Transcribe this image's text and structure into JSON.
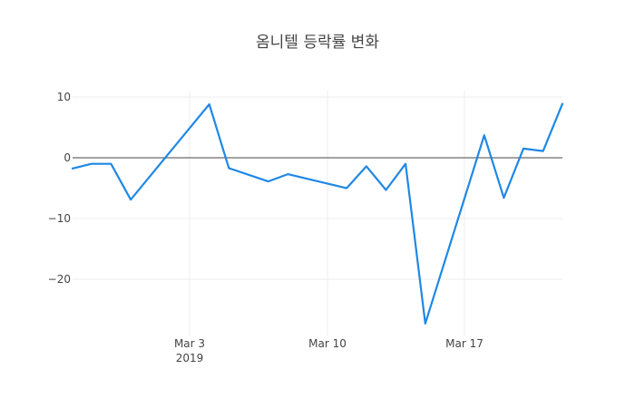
{
  "title": "옴니텔 등락률 변화",
  "colors": {
    "line": "#1f88e5",
    "zero_line": "#444444",
    "grid": "#eeeeee",
    "text": "#444444"
  },
  "y_axis": {
    "ticks": [
      {
        "value": 10,
        "label": "10"
      },
      {
        "value": 0,
        "label": "0"
      },
      {
        "value": -10,
        "label": "−10"
      },
      {
        "value": -20,
        "label": "−20"
      }
    ]
  },
  "x_axis": {
    "ticks": [
      {
        "label": "Mar 3",
        "sublabel": "2019"
      },
      {
        "label": "Mar 10",
        "sublabel": ""
      },
      {
        "label": "Mar 17",
        "sublabel": ""
      }
    ]
  },
  "chart_data": {
    "type": "line",
    "title": "옴니텔 등락률 변화",
    "xlabel": "",
    "ylabel": "",
    "x": [
      "2019-02-25",
      "2019-02-26",
      "2019-02-27",
      "2019-02-28",
      "2019-03-04",
      "2019-03-05",
      "2019-03-07",
      "2019-03-08",
      "2019-03-11",
      "2019-03-12",
      "2019-03-13",
      "2019-03-14",
      "2019-03-15",
      "2019-03-18",
      "2019-03-19",
      "2019-03-20",
      "2019-03-21",
      "2019-03-22"
    ],
    "series": [
      {
        "name": "등락률",
        "values": [
          -1.8,
          -1.0,
          -1.0,
          -6.9,
          8.8,
          -1.7,
          -3.9,
          -2.7,
          -5.0,
          -1.4,
          -5.3,
          -1.0,
          -27.3,
          3.7,
          -6.6,
          1.5,
          1.1,
          9.0
        ]
      }
    ],
    "x_tick_labels": [
      "Mar 3\n2019",
      "Mar 10",
      "Mar 17"
    ],
    "y_tick_labels": [
      "10",
      "0",
      "−10",
      "−20"
    ],
    "ylim": [
      -28.5,
      11.5
    ],
    "grid": true,
    "zero_line": true,
    "legend": "none"
  }
}
